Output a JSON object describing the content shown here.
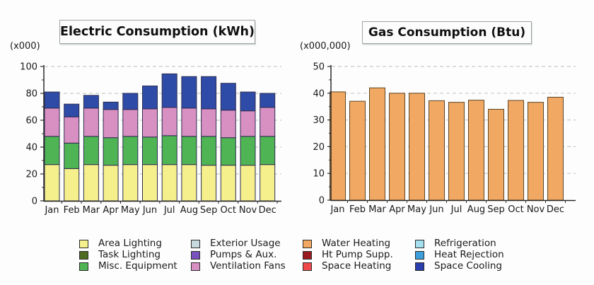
{
  "page": {
    "background_color": "#fdfdfd"
  },
  "chart_data": [
    {
      "type": "bar",
      "subtype": "stacked",
      "title": "Electric Consumption (kWh)",
      "unit_label": "(x000)",
      "categories": [
        "Jan",
        "Feb",
        "Mar",
        "Apr",
        "May",
        "Jun",
        "Jul",
        "Aug",
        "Sep",
        "Oct",
        "Nov",
        "Dec"
      ],
      "series": [
        {
          "name": "Area Lighting",
          "color": "#F5F08C",
          "values": [
            27,
            24,
            27,
            26.5,
            27,
            27,
            27,
            27,
            26.5,
            26.5,
            26.5,
            27
          ]
        },
        {
          "name": "Misc. Equipment",
          "color": "#4FB453",
          "values": [
            21,
            19,
            21,
            20.5,
            21,
            20.5,
            21.5,
            21,
            21.5,
            20.5,
            21.5,
            21
          ]
        },
        {
          "name": "Ventilation Fans",
          "color": "#D890C2",
          "values": [
            21,
            19.5,
            21,
            21,
            20,
            21,
            21,
            21,
            20.5,
            20.5,
            19,
            21.5
          ]
        },
        {
          "name": "Space Cooling",
          "color": "#2E4BA8",
          "values": [
            12,
            9.5,
            9.5,
            5.5,
            12,
            17,
            25,
            23.5,
            24,
            20,
            14,
            10.5
          ]
        }
      ],
      "totals": [
        81,
        72,
        78.5,
        73.5,
        80,
        85.5,
        94.5,
        92.5,
        92.5,
        87.5,
        81,
        80
      ],
      "ylim": [
        0,
        100
      ],
      "ytick_major": 20,
      "ytick_minor": 10,
      "grid": "dashed horizontal lines at major ticks",
      "bar_border": "#2d2d50",
      "xlabel": "",
      "ylabel": "(x000)"
    },
    {
      "type": "bar",
      "subtype": "single",
      "title": "Gas Consumption (Btu)",
      "unit_label": "(x000,000)",
      "categories": [
        "Jan",
        "Feb",
        "Mar",
        "Apr",
        "May",
        "Jun",
        "Jul",
        "Aug",
        "Sep",
        "Oct",
        "Nov",
        "Dec"
      ],
      "series": [
        {
          "name": "Water Heating",
          "color": "#F0A862",
          "values": [
            40.5,
            37,
            42,
            40,
            40,
            37.2,
            36.6,
            37.4,
            34,
            37.3,
            36.6,
            38.5
          ]
        }
      ],
      "ylim": [
        0,
        50
      ],
      "ytick_major": 10,
      "ytick_minor": 5,
      "grid": "dashed horizontal lines at major ticks",
      "bar_border": "#5d4727",
      "xlabel": "",
      "ylabel": "(x000,000)"
    }
  ],
  "legend": {
    "position": "bottom",
    "items": [
      {
        "label": "Area Lighting",
        "color": "#F5F08C"
      },
      {
        "label": "Task Lighting",
        "color": "#4E6B22"
      },
      {
        "label": "Misc. Equipment",
        "color": "#4FB453"
      },
      {
        "label": "Exterior Usage",
        "color": "#C9DADF"
      },
      {
        "label": "Pumps & Aux.",
        "color": "#7851BE"
      },
      {
        "label": "Ventilation Fans",
        "color": "#D890C2"
      },
      {
        "label": "Water Heating",
        "color": "#F0A862"
      },
      {
        "label": "Ht Pump Supp.",
        "color": "#991B1E"
      },
      {
        "label": "Space Heating",
        "color": "#EF4848"
      },
      {
        "label": "Refrigeration",
        "color": "#A5DFF0"
      },
      {
        "label": "Heat Rejection",
        "color": "#3C9FDB"
      },
      {
        "label": "Space Cooling",
        "color": "#2B3EAD"
      }
    ]
  }
}
